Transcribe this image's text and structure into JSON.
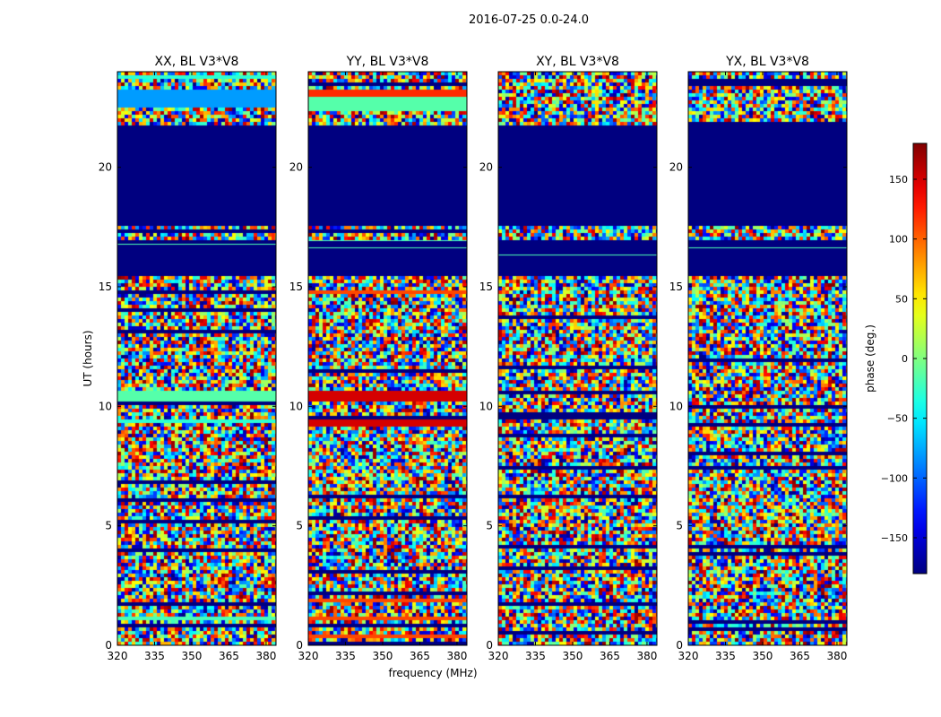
{
  "figure_title": "2016-07-25 0.0-24.0",
  "chart_data": {
    "type": "heatmap",
    "title": "2016-07-25 0.0-24.0",
    "xlabel": "frequency (MHz)",
    "ylabel": "UT (hours)",
    "xlim": [
      320,
      384
    ],
    "ylim": [
      0,
      24
    ],
    "xticks": [
      320,
      335,
      350,
      365,
      380
    ],
    "yticks": [
      0,
      5,
      10,
      15,
      20
    ],
    "colorbar": {
      "label": "phase (deg.)",
      "range": [
        -180,
        180
      ],
      "ticks": [
        -150,
        -100,
        -50,
        0,
        50,
        100,
        150
      ],
      "tick_labels": [
        "−150",
        "−100",
        "−50",
        "0",
        "50",
        "100",
        "150"
      ],
      "colormap": "jet"
    },
    "panels": [
      {
        "title": "XX, BL V3*V8",
        "blank_intervals_hours": [
          [
            17.6,
            21.7
          ],
          [
            15.4,
            17.0
          ]
        ],
        "constant_bands": [
          {
            "range_hours": [
              22.5,
              23.2
            ],
            "phase": -80
          },
          {
            "range_hours": [
              23.7,
              23.9
            ],
            "phase": -30
          },
          {
            "range_hours": [
              10.2,
              10.6
            ],
            "phase": -15
          },
          {
            "range_hours": [
              9.3,
              9.5
            ],
            "phase": -30
          },
          {
            "range_hours": [
              1.0,
              1.2
            ],
            "phase": -20
          },
          {
            "range_hours": [
              0.4,
              0.5
            ],
            "phase": -20
          }
        ]
      },
      {
        "title": "YY, BL V3*V8",
        "blank_intervals_hours": [
          [
            17.6,
            21.7
          ],
          [
            15.4,
            17.0
          ]
        ],
        "constant_bands": [
          {
            "range_hours": [
              23.0,
              23.2
            ],
            "phase": 120
          },
          {
            "range_hours": [
              22.3,
              22.9
            ],
            "phase": -15
          },
          {
            "range_hours": [
              10.2,
              10.6
            ],
            "phase": 150
          },
          {
            "range_hours": [
              9.2,
              9.5
            ],
            "phase": 150
          },
          {
            "range_hours": [
              14.7,
              14.9
            ],
            "phase": 110
          },
          {
            "range_hours": [
              1.0,
              1.2
            ],
            "phase": 110
          },
          {
            "range_hours": [
              0.3,
              0.5
            ],
            "phase": 110
          },
          {
            "range_hours": [
              1.8,
              1.9
            ],
            "phase": 110
          }
        ]
      },
      {
        "title": "XY, BL V3*V8",
        "blank_intervals_hours": [
          [
            17.6,
            21.7
          ],
          [
            15.4,
            17.0
          ]
        ],
        "constant_bands": []
      },
      {
        "title": "YX, BL V3*V8",
        "blank_intervals_hours": [
          [
            17.6,
            21.7
          ],
          [
            15.4,
            17.0
          ]
        ],
        "constant_bands": []
      }
    ]
  }
}
